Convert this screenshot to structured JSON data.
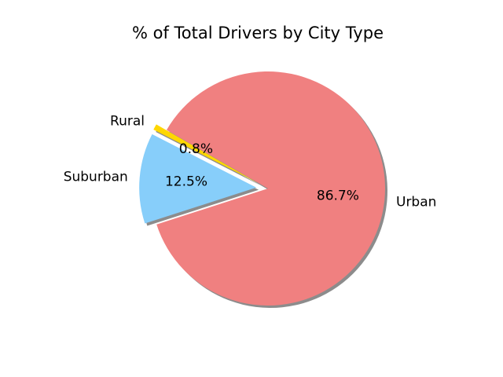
{
  "chart_data": {
    "type": "pie",
    "title": "% of Total Drivers by City Type",
    "start_angle_deg": 150,
    "shadow": true,
    "slices": [
      {
        "label": "Rural",
        "value": 0.8,
        "pct_label": "0.8%",
        "color": "#FFD700",
        "explode": 0.1
      },
      {
        "label": "Suburban",
        "value": 12.5,
        "pct_label": "12.5%",
        "color": "#87CEFA",
        "explode": 0.1
      },
      {
        "label": "Urban",
        "value": 86.7,
        "pct_label": "86.7%",
        "color": "#F08080",
        "explode": 0.0
      }
    ]
  }
}
